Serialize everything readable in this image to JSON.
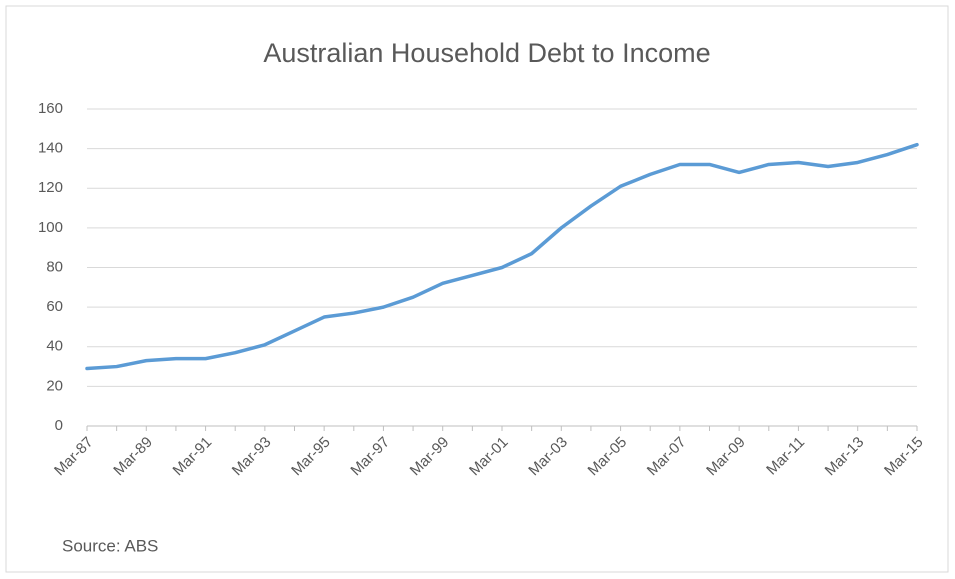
{
  "chart_data": {
    "type": "line",
    "title": "Australian Household Debt to Income",
    "source": "Source: ABS",
    "categories": [
      "Mar-87",
      null,
      "Mar-89",
      null,
      "Mar-91",
      null,
      "Mar-93",
      null,
      "Mar-95",
      null,
      "Mar-97",
      null,
      "Mar-99",
      null,
      "Mar-01",
      null,
      "Mar-03",
      null,
      "Mar-05",
      null,
      "Mar-07",
      null,
      "Mar-09",
      null,
      "Mar-11",
      null,
      "Mar-13",
      null,
      "Mar-15"
    ],
    "values": [
      29,
      30,
      33,
      34,
      34,
      37,
      41,
      48,
      55,
      57,
      60,
      65,
      72,
      76,
      80,
      87,
      100,
      111,
      121,
      127,
      132,
      132,
      128,
      132,
      133,
      131,
      133,
      137,
      142
    ],
    "color": "#5b9bd5",
    "ylim": [
      0,
      160
    ],
    "yticks": [
      0,
      20,
      40,
      60,
      80,
      100,
      120,
      140,
      160
    ],
    "grid": true
  }
}
